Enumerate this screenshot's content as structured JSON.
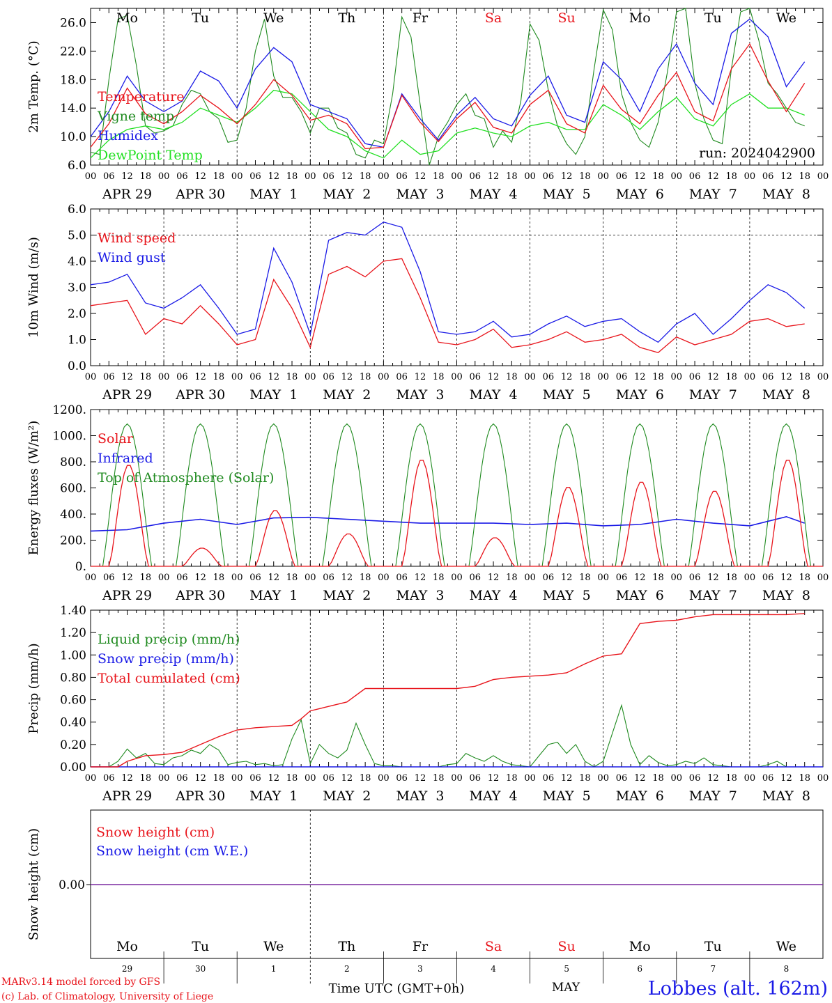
{
  "colors": {
    "red": "#e8141b",
    "green": "#1f8a1f",
    "lightgreen": "#22e022",
    "blue": "#1a1ae6",
    "purple": "#7a2aa0",
    "black": "#000000"
  },
  "days": {
    "weekday": [
      "Mo",
      "Tu",
      "We",
      "Th",
      "Fr",
      "Sa",
      "Su",
      "Mo",
      "Tu",
      "We"
    ],
    "weekday_red": [
      false,
      false,
      false,
      false,
      false,
      true,
      true,
      false,
      false,
      false
    ],
    "date_labels": [
      "APR 29",
      "APR 30",
      "MAY  1",
      "MAY  2",
      "MAY  3",
      "MAY  4",
      "MAY  5",
      "MAY  6",
      "MAY  7",
      "MAY  8"
    ],
    "day_numbers": [
      "29",
      "30",
      "1",
      "2",
      "3",
      "4",
      "5",
      "6",
      "7",
      "8"
    ],
    "hour_ticks": [
      "00",
      "06",
      "12",
      "18"
    ],
    "hour_end": "00"
  },
  "chart_data": [
    {
      "type": "line",
      "ylabel": "2m Temp. (°C)",
      "ylim": [
        6.0,
        28.0
      ],
      "yticks": [
        "6.0",
        "10.0",
        "14.0",
        "18.0",
        "22.0",
        "26.0"
      ],
      "annotation": "run: 2024042900",
      "x_unit": "hours since 2024-04-29 00 UTC",
      "series": [
        {
          "name": "Temperature",
          "color": "red",
          "x": [
            0,
            6,
            12,
            18,
            24,
            30,
            36,
            42,
            48,
            54,
            60,
            66,
            72,
            78,
            84,
            90,
            96,
            102,
            108,
            114,
            120,
            126,
            132,
            138,
            144,
            150,
            156,
            162,
            168,
            174,
            180,
            186,
            192,
            198,
            204,
            210,
            216,
            222,
            228,
            234
          ],
          "values": [
            8.5,
            11.8,
            16.8,
            13.2,
            11.8,
            13.5,
            15.8,
            14.0,
            11.8,
            14.5,
            18.0,
            15.8,
            12.3,
            13.0,
            11.8,
            8.3,
            8.5,
            15.8,
            12.0,
            9.3,
            12.5,
            14.8,
            11.3,
            10.5,
            14.5,
            16.5,
            11.8,
            10.5,
            17.2,
            13.8,
            11.8,
            15.8,
            19.0,
            13.5,
            12.2,
            19.5,
            23.0,
            17.8,
            13.5,
            17.5
          ]
        },
        {
          "name": "Vigne temp",
          "color": "green",
          "x": [
            0,
            3,
            6,
            9,
            12,
            15,
            18,
            21,
            24,
            27,
            30,
            33,
            36,
            39,
            42,
            45,
            48,
            51,
            54,
            57,
            60,
            63,
            66,
            69,
            72,
            75,
            78,
            81,
            84,
            87,
            90,
            93,
            96,
            99,
            102,
            105,
            108,
            111,
            114,
            117,
            120,
            123,
            126,
            129,
            132,
            135,
            138,
            141,
            144,
            147,
            150,
            153,
            156,
            159,
            162,
            165,
            168,
            171,
            174,
            177,
            180,
            183,
            186,
            189,
            192,
            195,
            198,
            201,
            204,
            207,
            210,
            213,
            216,
            219,
            222,
            225,
            228,
            231,
            234
          ],
          "values": [
            7.8,
            7.5,
            18.0,
            26.5,
            27.0,
            20.0,
            11.5,
            10.5,
            10.8,
            11.5,
            14.5,
            16.5,
            16.0,
            13.5,
            12.5,
            9.2,
            9.5,
            14.0,
            22.0,
            26.5,
            18.5,
            15.5,
            15.5,
            13.5,
            10.5,
            14.0,
            14.0,
            11.2,
            10.5,
            7.5,
            7.0,
            9.5,
            9.0,
            16.0,
            26.8,
            24.0,
            14.5,
            6.0,
            10.0,
            12.0,
            14.5,
            16.0,
            13.0,
            12.5,
            8.5,
            10.8,
            9.2,
            15.0,
            25.8,
            23.5,
            16.5,
            11.5,
            9.0,
            7.5,
            10.0,
            19.5,
            27.8,
            25.0,
            16.0,
            12.0,
            9.5,
            8.5,
            12.0,
            19.0,
            27.5,
            28.0,
            17.5,
            12.5,
            9.5,
            9.0,
            19.5,
            27.5,
            28.0,
            23.5,
            17.5,
            16.0,
            14.0,
            12.0,
            11.5
          ]
        },
        {
          "name": "Humidex",
          "color": "blue",
          "x": [
            0,
            6,
            12,
            18,
            24,
            30,
            36,
            42,
            48,
            54,
            60,
            66,
            72,
            78,
            84,
            90,
            96,
            102,
            108,
            114,
            120,
            126,
            132,
            138,
            144,
            150,
            156,
            162,
            168,
            174,
            180,
            186,
            192,
            198,
            204,
            210,
            216,
            222,
            228,
            234
          ],
          "values": [
            10.0,
            13.5,
            18.5,
            15.0,
            13.5,
            15.0,
            19.2,
            17.8,
            14.0,
            19.5,
            22.5,
            20.5,
            14.5,
            13.5,
            12.5,
            9.0,
            8.5,
            16.0,
            12.5,
            9.5,
            13.0,
            15.5,
            12.5,
            11.5,
            15.8,
            18.5,
            13.0,
            12.0,
            20.5,
            18.0,
            13.5,
            19.5,
            23.0,
            17.5,
            14.5,
            24.5,
            26.5,
            24.0,
            17.0,
            20.5
          ]
        },
        {
          "name": "DewPoint Temp",
          "color": "lightgreen",
          "x": [
            0,
            6,
            12,
            18,
            24,
            30,
            36,
            42,
            48,
            54,
            60,
            66,
            72,
            78,
            84,
            90,
            96,
            102,
            108,
            114,
            120,
            126,
            132,
            138,
            144,
            150,
            156,
            162,
            168,
            174,
            180,
            186,
            192,
            198,
            204,
            210,
            216,
            222,
            228,
            234
          ],
          "values": [
            7.0,
            9.5,
            11.0,
            11.5,
            11.0,
            12.0,
            14.0,
            13.0,
            12.0,
            14.0,
            16.5,
            16.0,
            13.5,
            11.0,
            10.0,
            8.0,
            7.0,
            9.5,
            7.5,
            8.0,
            10.5,
            11.2,
            10.5,
            10.0,
            11.5,
            12.0,
            11.0,
            11.0,
            14.5,
            13.0,
            11.0,
            13.5,
            15.5,
            12.5,
            11.5,
            14.5,
            16.0,
            14.0,
            14.0,
            13.0
          ]
        }
      ]
    },
    {
      "type": "line",
      "ylabel": "10m Wind (m/s)",
      "ylim": [
        0.0,
        6.0
      ],
      "yticks": [
        "0.0",
        "1.0",
        "2.0",
        "3.0",
        "4.0",
        "5.0",
        "6.0"
      ],
      "ref_line": 5.0,
      "series": [
        {
          "name": "Wind speed",
          "color": "red",
          "x": [
            0,
            6,
            12,
            18,
            24,
            30,
            36,
            42,
            48,
            54,
            60,
            66,
            72,
            78,
            84,
            90,
            96,
            102,
            108,
            114,
            120,
            126,
            132,
            138,
            144,
            150,
            156,
            162,
            168,
            174,
            180,
            186,
            192,
            198,
            204,
            210,
            216,
            222,
            228,
            234
          ],
          "values": [
            2.3,
            2.4,
            2.5,
            1.2,
            1.8,
            1.6,
            2.3,
            1.6,
            0.8,
            1.0,
            3.3,
            2.2,
            0.7,
            3.5,
            3.8,
            3.4,
            4.0,
            4.1,
            2.6,
            0.9,
            0.8,
            1.0,
            1.4,
            0.7,
            0.8,
            1.0,
            1.3,
            0.9,
            1.0,
            1.2,
            0.7,
            0.5,
            1.1,
            0.8,
            1.0,
            1.2,
            1.7,
            1.8,
            1.5,
            1.6
          ]
        },
        {
          "name": "Wind gust",
          "color": "blue",
          "x": [
            0,
            6,
            12,
            18,
            24,
            30,
            36,
            42,
            48,
            54,
            60,
            66,
            72,
            78,
            84,
            90,
            96,
            102,
            108,
            114,
            120,
            126,
            132,
            138,
            144,
            150,
            156,
            162,
            168,
            174,
            180,
            186,
            192,
            198,
            204,
            210,
            216,
            222,
            228,
            234
          ],
          "values": [
            3.1,
            3.2,
            3.5,
            2.4,
            2.2,
            2.6,
            3.1,
            2.2,
            1.2,
            1.4,
            4.5,
            3.2,
            1.2,
            4.8,
            5.1,
            5.0,
            5.5,
            5.3,
            3.6,
            1.3,
            1.2,
            1.3,
            1.7,
            1.1,
            1.2,
            1.6,
            1.9,
            1.5,
            1.7,
            1.8,
            1.3,
            0.9,
            1.6,
            2.0,
            1.2,
            1.8,
            2.5,
            3.1,
            2.8,
            2.2
          ]
        }
      ]
    },
    {
      "type": "line",
      "ylabel": "Energy fluxes (W/m²)",
      "ylim": [
        0,
        1200
      ],
      "yticks": [
        "0.",
        "200.",
        "400.",
        "600.",
        "800.",
        "1000.",
        "1200."
      ],
      "series": [
        {
          "name": "Solar",
          "color": "red",
          "day_peaks": [
            780,
            140,
            430,
            250,
            820,
            220,
            610,
            650,
            580,
            820
          ]
        },
        {
          "name": "Infrared",
          "color": "blue",
          "x": [
            0,
            12,
            24,
            36,
            48,
            60,
            72,
            84,
            96,
            108,
            120,
            132,
            144,
            156,
            168,
            180,
            192,
            204,
            216,
            228,
            234
          ],
          "values": [
            270,
            280,
            330,
            360,
            320,
            370,
            375,
            360,
            345,
            330,
            330,
            330,
            320,
            330,
            310,
            320,
            360,
            330,
            310,
            380,
            330
          ]
        },
        {
          "name": "Top of Atmosphere (Solar)",
          "color": "green",
          "day_peak": 1090
        }
      ]
    },
    {
      "type": "line",
      "ylabel": "Precip (mm/h)",
      "ylim": [
        0.0,
        1.4
      ],
      "yticks": [
        "0.00",
        "0.20",
        "0.40",
        "0.60",
        "0.80",
        "1.00",
        "1.20",
        "1.40"
      ],
      "series": [
        {
          "name": "Liquid precip (mm/h)",
          "color": "green",
          "x": [
            0,
            6,
            9,
            12,
            15,
            18,
            21,
            24,
            27,
            30,
            33,
            36,
            39,
            42,
            45,
            48,
            51,
            54,
            57,
            60,
            63,
            66,
            69,
            72,
            75,
            78,
            81,
            84,
            87,
            90,
            93,
            96,
            99,
            102,
            105,
            108,
            111,
            114,
            117,
            120,
            123,
            126,
            129,
            132,
            135,
            138,
            141,
            144,
            147,
            150,
            153,
            156,
            159,
            162,
            165,
            168,
            171,
            174,
            177,
            180,
            183,
            186,
            189,
            192,
            195,
            198,
            201,
            204,
            207,
            210,
            213,
            216,
            219,
            222,
            225,
            228,
            231,
            234
          ],
          "values": [
            0,
            0,
            0.05,
            0.16,
            0.08,
            0.12,
            0.03,
            0.02,
            0.08,
            0.1,
            0.15,
            0.12,
            0.2,
            0.15,
            0.02,
            0.04,
            0.05,
            0.02,
            0.03,
            0.01,
            0.02,
            0.25,
            0.42,
            0.03,
            0.2,
            0.12,
            0.08,
            0.15,
            0.39,
            0.2,
            0.03,
            0.01,
            0.01,
            0,
            0,
            0,
            0,
            0,
            0.02,
            0.03,
            0.12,
            0.08,
            0.05,
            0.1,
            0.05,
            0.02,
            0.01,
            0,
            0.1,
            0.2,
            0.22,
            0.12,
            0.2,
            0.05,
            0,
            0.05,
            0.3,
            0.55,
            0.2,
            0.02,
            0.1,
            0.04,
            0.01,
            0.02,
            0.05,
            0.03,
            0.08,
            0.02,
            0.01,
            0,
            0,
            0,
            0,
            0.02,
            0.05,
            0,
            0,
            0
          ]
        },
        {
          "name": "Snow precip (mm/h)",
          "color": "blue",
          "flat": 0
        },
        {
          "name": "Total cumulated (cm)",
          "color": "red",
          "x": [
            0,
            9,
            12,
            18,
            24,
            30,
            36,
            42,
            48,
            54,
            60,
            66,
            69,
            72,
            75,
            78,
            84,
            90,
            96,
            102,
            108,
            114,
            120,
            126,
            132,
            138,
            144,
            150,
            156,
            162,
            168,
            174,
            180,
            186,
            192,
            198,
            204,
            210,
            216,
            222,
            228,
            234
          ],
          "values": [
            0,
            0,
            0.05,
            0.1,
            0.11,
            0.13,
            0.2,
            0.27,
            0.33,
            0.35,
            0.36,
            0.37,
            0.43,
            0.5,
            0.52,
            0.54,
            0.58,
            0.7,
            0.7,
            0.7,
            0.7,
            0.7,
            0.7,
            0.72,
            0.78,
            0.8,
            0.81,
            0.82,
            0.84,
            0.92,
            0.99,
            1.01,
            1.28,
            1.3,
            1.31,
            1.34,
            1.36,
            1.36,
            1.36,
            1.36,
            1.36,
            1.37
          ]
        }
      ]
    },
    {
      "type": "line",
      "ylabel": "Snow height (cm)",
      "yticks": [
        "0.00"
      ],
      "series": [
        {
          "name": "Snow height (cm)",
          "color": "red",
          "flat": 0
        },
        {
          "name": "Snow height (cm W.E.)",
          "color": "blue",
          "flat": 0
        }
      ]
    }
  ],
  "footer": {
    "model_line": "MARv3.14 model forced by GFS",
    "lab_line": "(c) Lab. of Climatology, University of Liege",
    "time_label": "Time UTC (GMT+0h)",
    "month_label": "MAY",
    "station": "Lobbes (alt. 162m)"
  }
}
